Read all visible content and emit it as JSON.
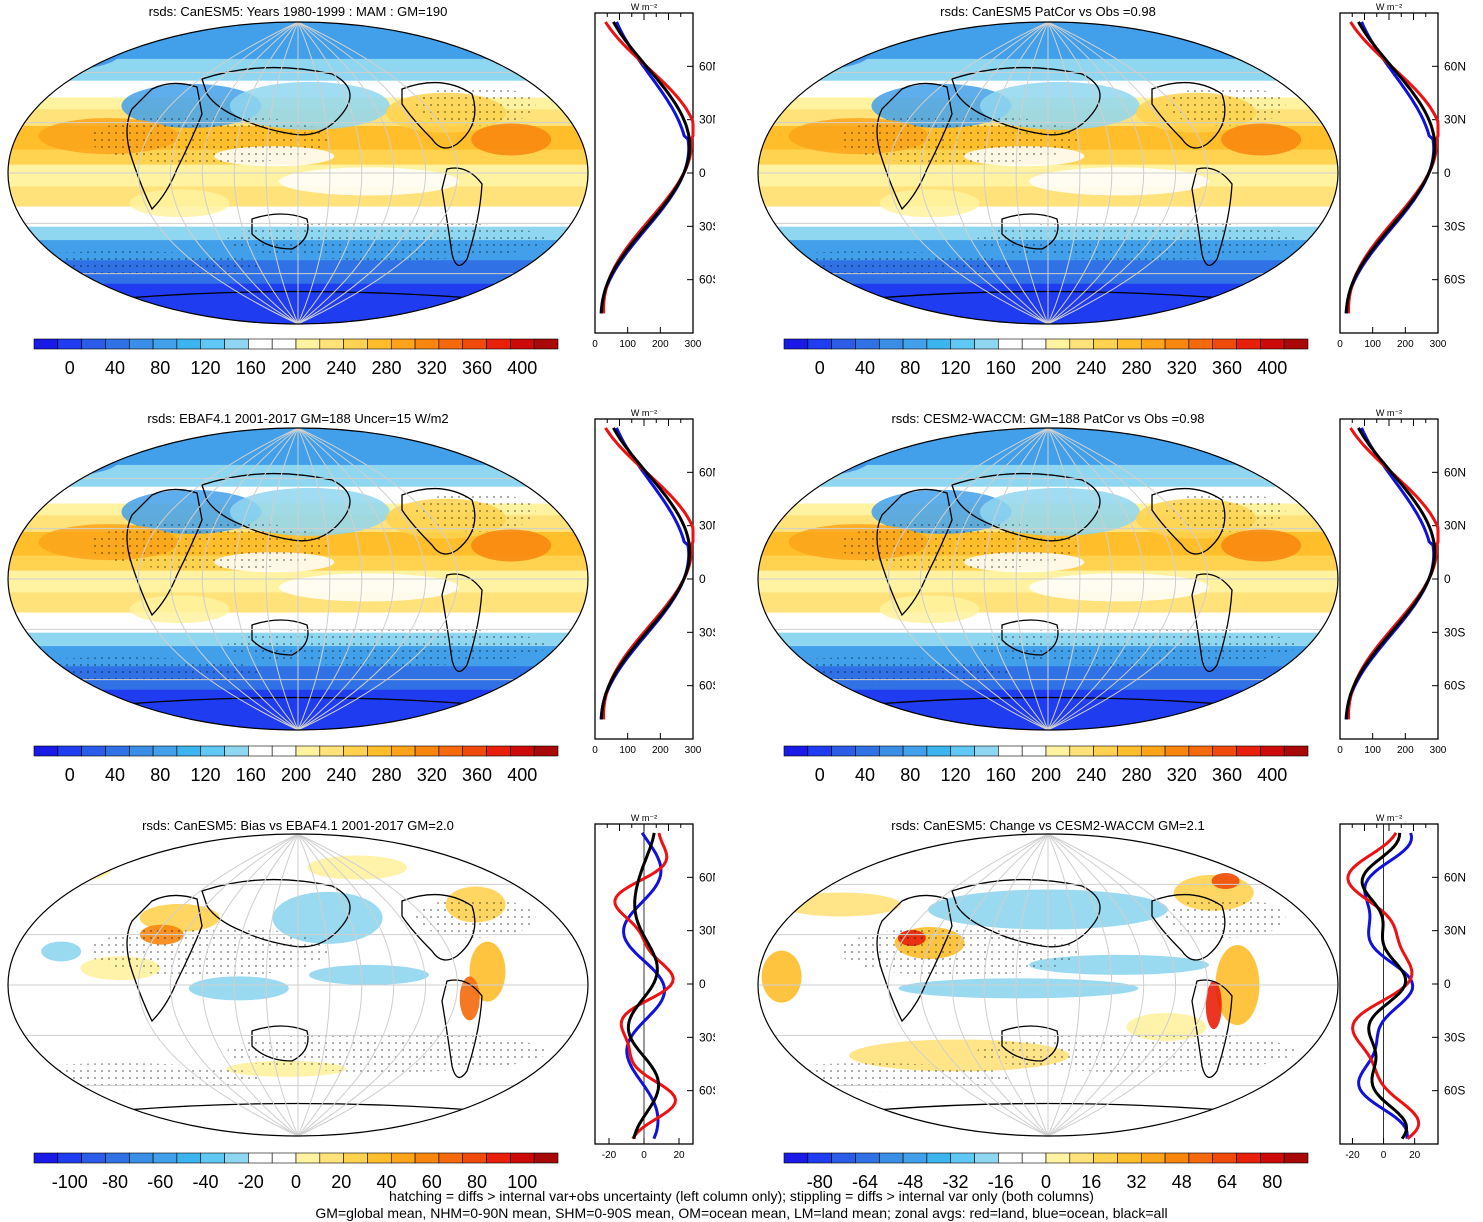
{
  "panels": [
    {
      "title": "rsds: CanESM5: Years 1980-1999 : MAM : GM=190",
      "cbar": "abs",
      "profile": "abs",
      "theme": "abs1"
    },
    {
      "title": "rsds: CanESM5 PatCor vs Obs =0.98",
      "cbar": "abs",
      "profile": "abs",
      "theme": "abs2"
    },
    {
      "title": "rsds: EBAF4.1 2001-2017 GM=188 Uncer=15 W/m2",
      "cbar": "abs",
      "profile": "abs",
      "theme": "abs3"
    },
    {
      "title": "rsds: CESM2-WACCM: GM=188 PatCor vs Obs =0.98",
      "cbar": "abs",
      "profile": "abs",
      "theme": "abs4"
    },
    {
      "title": "rsds: CanESM5: Bias vs EBAF4.1 2001-2017 GM=2.0",
      "cbar": "bias",
      "profile": "bias",
      "theme": "bias"
    },
    {
      "title": "rsds: CanESM5: Change vs CESM2-WACCM GM=2.1",
      "cbar": "chg",
      "profile": "chg",
      "theme": "chg"
    }
  ],
  "colorbars": {
    "abs": {
      "colors": [
        "#1a1ae6",
        "#1f3cf0",
        "#2a5ce8",
        "#3072e6",
        "#3a8ee6",
        "#42a0ea",
        "#3cb4ee",
        "#60c8f4",
        "#8fd6f0",
        "#ffffff",
        "#ffffff",
        "#fff2a0",
        "#ffe27a",
        "#ffd250",
        "#ffbe2a",
        "#fca41a",
        "#f8860e",
        "#f46a0c",
        "#f04a0a",
        "#e8200a",
        "#cc0a0a",
        "#a80808"
      ],
      "labels": [
        "0",
        "40",
        "80",
        "120",
        "160",
        "200",
        "240",
        "280",
        "320",
        "360",
        "400"
      ]
    },
    "bias": {
      "colors": [
        "#1a1ae6",
        "#1f3cf0",
        "#2a5ce8",
        "#3072e6",
        "#3a8ee6",
        "#42a0ea",
        "#3cb4ee",
        "#60c8f4",
        "#8fd6f0",
        "#ffffff",
        "#ffffff",
        "#fff2a0",
        "#ffe27a",
        "#ffd250",
        "#ffbe2a",
        "#fca41a",
        "#f8860e",
        "#f46a0c",
        "#f04a0a",
        "#e8200a",
        "#cc0a0a",
        "#a80808"
      ],
      "labels": [
        "-100",
        "-80",
        "-60",
        "-40",
        "-20",
        "0",
        "20",
        "40",
        "60",
        "80",
        "100"
      ]
    },
    "chg": {
      "colors": [
        "#1a1ae6",
        "#1f3cf0",
        "#2a5ce8",
        "#3072e6",
        "#3a8ee6",
        "#42a0ea",
        "#3cb4ee",
        "#60c8f4",
        "#8fd6f0",
        "#ffffff",
        "#ffffff",
        "#fff2a0",
        "#ffe27a",
        "#ffd250",
        "#ffbe2a",
        "#fca41a",
        "#f8860e",
        "#f46a0c",
        "#f04a0a",
        "#e8200a",
        "#cc0a0a",
        "#a80808"
      ],
      "labels": [
        "-80",
        "-64",
        "-48",
        "-32",
        "-16",
        "0",
        "16",
        "32",
        "48",
        "64",
        "80"
      ]
    }
  },
  "profiles": {
    "abs": {
      "xticks": [
        "0",
        "100",
        "200",
        "300"
      ],
      "xmin": 0,
      "xmax": 300
    },
    "bias": {
      "xticks": [
        "-20",
        "0",
        "20"
      ],
      "xmin": -28,
      "xmax": 28
    },
    "chg": {
      "xticks": [
        "-20",
        "0",
        "20"
      ],
      "xmin": -28,
      "xmax": 35
    }
  },
  "lat_labels": [
    "60N",
    "30N",
    "0",
    "30S",
    "60S"
  ],
  "units": "W m⁻²",
  "footer": {
    "line1": "hatching = diffs > internal var+obs uncertainty (left column only); stippling = diffs > internal var only (both columns)",
    "line2": "GM=global mean, NHM=0-90N mean, SHM=0-90S mean, OM=ocean mean, LM=land mean; zonal avgs: red=land, blue=ocean, black=all"
  },
  "colors": {
    "land": "#ee1111",
    "ocean": "#1111dd",
    "all": "#000000"
  }
}
